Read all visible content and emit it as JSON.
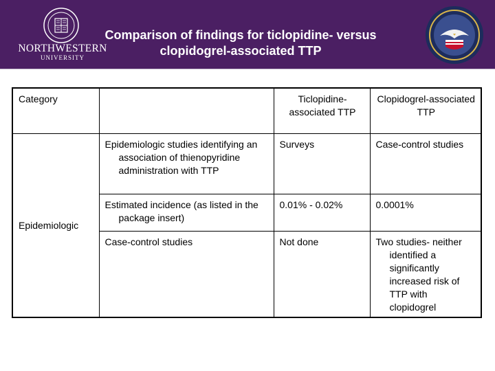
{
  "header": {
    "title_line1": "Comparison of findings for ticlopidine- versus",
    "title_line2": "clopidogrel-associated TTP",
    "university_name": "NORTHWESTERN",
    "university_sub": "UNIVERSITY",
    "left_logo_icon": "northwestern-seal-icon",
    "right_logo_icon": "va-seal-icon"
  },
  "colors": {
    "header_bg": "#4b1f63",
    "title_text": "#ffffff"
  },
  "table": {
    "header": {
      "category": "Category",
      "finding": "",
      "ticlopidine": "Ticlopidine-associated TTP",
      "clopidogrel": "Clopidogrel-associated TTP"
    },
    "category_label": "Epidemiologic",
    "rows": [
      {
        "finding": "Epidemiologic studies identifying an association of thienopyridine administration with TTP",
        "ticlopidine": "Surveys",
        "clopidogrel": "Case-control studies"
      },
      {
        "finding": "Estimated incidence (as listed in the package insert)",
        "ticlopidine": "0.01% - 0.02%",
        "clopidogrel": "0.0001%"
      },
      {
        "finding": "Case-control studies",
        "ticlopidine": "Not done",
        "clopidogrel": "Two studies- neither identified a significantly increased risk of TTP with clopidogrel"
      }
    ]
  }
}
